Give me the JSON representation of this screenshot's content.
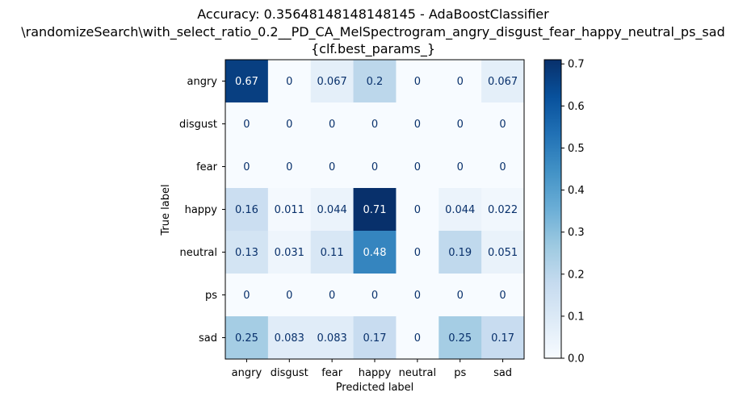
{
  "chart_data": {
    "type": "heatmap",
    "title_lines": [
      "Accuracy: 0.35648148148148145 - AdaBoostClassifier",
      "\\randomizeSearch\\with_select_ratio_0.2__PD_CA_MelSpectrogram_angry_disgust_fear_happy_neutral_ps_sad",
      "{clf.best_params_}"
    ],
    "xlabel": "Predicted label",
    "ylabel": "True label",
    "x_categories": [
      "angry",
      "disgust",
      "fear",
      "happy",
      "neutral",
      "ps",
      "sad"
    ],
    "y_categories": [
      "angry",
      "disgust",
      "fear",
      "happy",
      "neutral",
      "ps",
      "sad"
    ],
    "values": [
      [
        0.67,
        0,
        0.067,
        0.2,
        0,
        0,
        0.067
      ],
      [
        0,
        0,
        0,
        0,
        0,
        0,
        0
      ],
      [
        0,
        0,
        0,
        0,
        0,
        0,
        0
      ],
      [
        0.16,
        0.011,
        0.044,
        0.71,
        0,
        0.044,
        0.022
      ],
      [
        0.13,
        0.031,
        0.11,
        0.48,
        0,
        0.19,
        0.051
      ],
      [
        0,
        0,
        0,
        0,
        0,
        0,
        0
      ],
      [
        0.25,
        0.083,
        0.083,
        0.17,
        0,
        0.25,
        0.17
      ]
    ],
    "labels": [
      [
        "0.67",
        "0",
        "0.067",
        "0.2",
        "0",
        "0",
        "0.067"
      ],
      [
        "0",
        "0",
        "0",
        "0",
        "0",
        "0",
        "0"
      ],
      [
        "0",
        "0",
        "0",
        "0",
        "0",
        "0",
        "0"
      ],
      [
        "0.16",
        "0.011",
        "0.044",
        "0.71",
        "0",
        "0.044",
        "0.022"
      ],
      [
        "0.13",
        "0.031",
        "0.11",
        "0.48",
        "0",
        "0.19",
        "0.051"
      ],
      [
        "0",
        "0",
        "0",
        "0",
        "0",
        "0",
        "0"
      ],
      [
        "0.25",
        "0.083",
        "0.083",
        "0.17",
        "0",
        "0.25",
        "0.17"
      ]
    ],
    "colormap": "Blues",
    "colorbar": {
      "range": [
        0,
        0.71
      ],
      "ticks": [
        0.0,
        0.1,
        0.2,
        0.3,
        0.4,
        0.5,
        0.6,
        0.7
      ],
      "tick_labels": [
        "0.0",
        "0.1",
        "0.2",
        "0.3",
        "0.4",
        "0.5",
        "0.6",
        "0.7"
      ]
    },
    "grid": false
  }
}
